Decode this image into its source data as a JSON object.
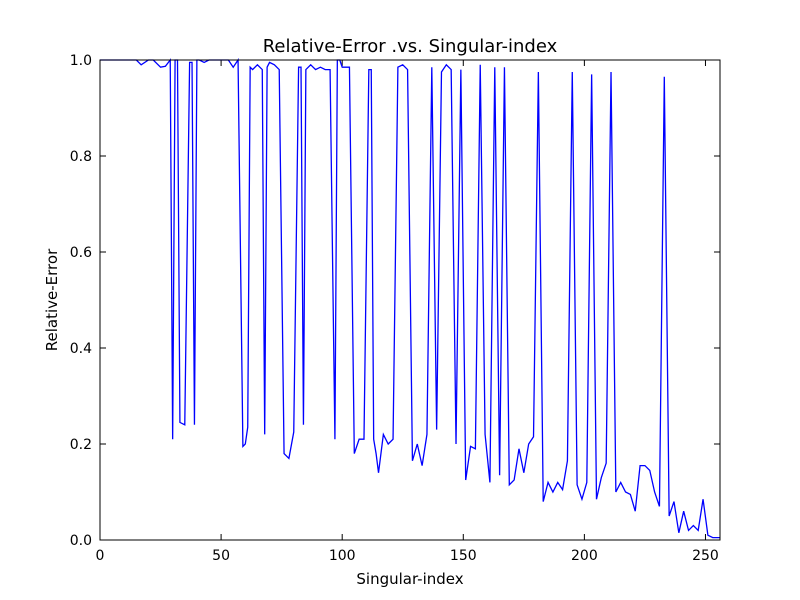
{
  "chart_data": {
    "type": "line",
    "title": "Relative-Error .vs. Singular-index",
    "xlabel": "Singular-index",
    "ylabel": "Relative-Error",
    "xlim": [
      0,
      256
    ],
    "ylim": [
      0.0,
      1.0
    ],
    "xticks": [
      "0",
      "50",
      "100",
      "150",
      "200",
      "250"
    ],
    "xtick_values": [
      0,
      50,
      100,
      150,
      200,
      250
    ],
    "yticks": [
      "0.0",
      "0.2",
      "0.4",
      "0.6",
      "0.8",
      "1.0"
    ],
    "ytick_values": [
      0.0,
      0.2,
      0.4,
      0.6,
      0.8,
      1.0
    ],
    "grid": false,
    "legend": "none",
    "series": [
      {
        "color": "#0000ff",
        "x": [
          0,
          5,
          10,
          15,
          17,
          20,
          22,
          25,
          27,
          29,
          30,
          31,
          32,
          33,
          35,
          37,
          38,
          39,
          40,
          41,
          43,
          45,
          48,
          50,
          53,
          55,
          57,
          59,
          60,
          61,
          62,
          63,
          65,
          67,
          68,
          69,
          70,
          72,
          74,
          76,
          78,
          80,
          82,
          83,
          84,
          85,
          86,
          87,
          89,
          91,
          93,
          95,
          97,
          98,
          99,
          100,
          101,
          103,
          105,
          107,
          109,
          111,
          112,
          113,
          114,
          115,
          117,
          119,
          121,
          123,
          125,
          127,
          129,
          131,
          133,
          135,
          137,
          139,
          141,
          143,
          145,
          147,
          149,
          151,
          153,
          155,
          157,
          159,
          161,
          163,
          165,
          167,
          169,
          171,
          173,
          175,
          177,
          179,
          181,
          183,
          185,
          187,
          189,
          191,
          193,
          195,
          197,
          199,
          201,
          203,
          205,
          207,
          209,
          211,
          213,
          215,
          217,
          219,
          221,
          223,
          225,
          227,
          229,
          231,
          233,
          235,
          237,
          239,
          241,
          243,
          245,
          247,
          249,
          251,
          253,
          256
        ],
        "y": [
          1.0,
          1.0,
          1.0,
          1.0,
          0.99,
          1.0,
          1.0,
          0.985,
          0.987,
          1.0,
          0.21,
          1.0,
          1.0,
          0.245,
          0.24,
          0.995,
          0.995,
          0.24,
          1.0,
          1.0,
          0.995,
          1.0,
          1.0,
          1.0,
          1.0,
          0.985,
          1.0,
          0.195,
          0.2,
          0.235,
          0.985,
          0.98,
          0.99,
          0.98,
          0.22,
          0.985,
          0.995,
          0.99,
          0.98,
          0.18,
          0.17,
          0.225,
          0.985,
          0.985,
          0.24,
          0.98,
          0.985,
          0.99,
          0.98,
          0.985,
          0.98,
          0.98,
          0.21,
          1.0,
          1.0,
          0.985,
          0.985,
          0.985,
          0.18,
          0.21,
          0.21,
          0.98,
          0.98,
          0.21,
          0.18,
          0.14,
          0.22,
          0.2,
          0.21,
          0.985,
          0.99,
          0.98,
          0.165,
          0.2,
          0.155,
          0.22,
          0.985,
          0.23,
          0.975,
          0.99,
          0.98,
          0.2,
          0.98,
          0.125,
          0.195,
          0.19,
          0.99,
          0.22,
          0.12,
          0.985,
          0.135,
          0.985,
          0.115,
          0.125,
          0.19,
          0.14,
          0.2,
          0.215,
          0.975,
          0.08,
          0.12,
          0.1,
          0.12,
          0.105,
          0.165,
          0.975,
          0.115,
          0.085,
          0.12,
          0.97,
          0.085,
          0.13,
          0.16,
          0.975,
          0.1,
          0.12,
          0.1,
          0.095,
          0.06,
          0.155,
          0.155,
          0.145,
          0.1,
          0.07,
          0.965,
          0.05,
          0.08,
          0.015,
          0.06,
          0.02,
          0.03,
          0.02,
          0.085,
          0.01,
          0.005,
          0.005
        ]
      }
    ]
  }
}
